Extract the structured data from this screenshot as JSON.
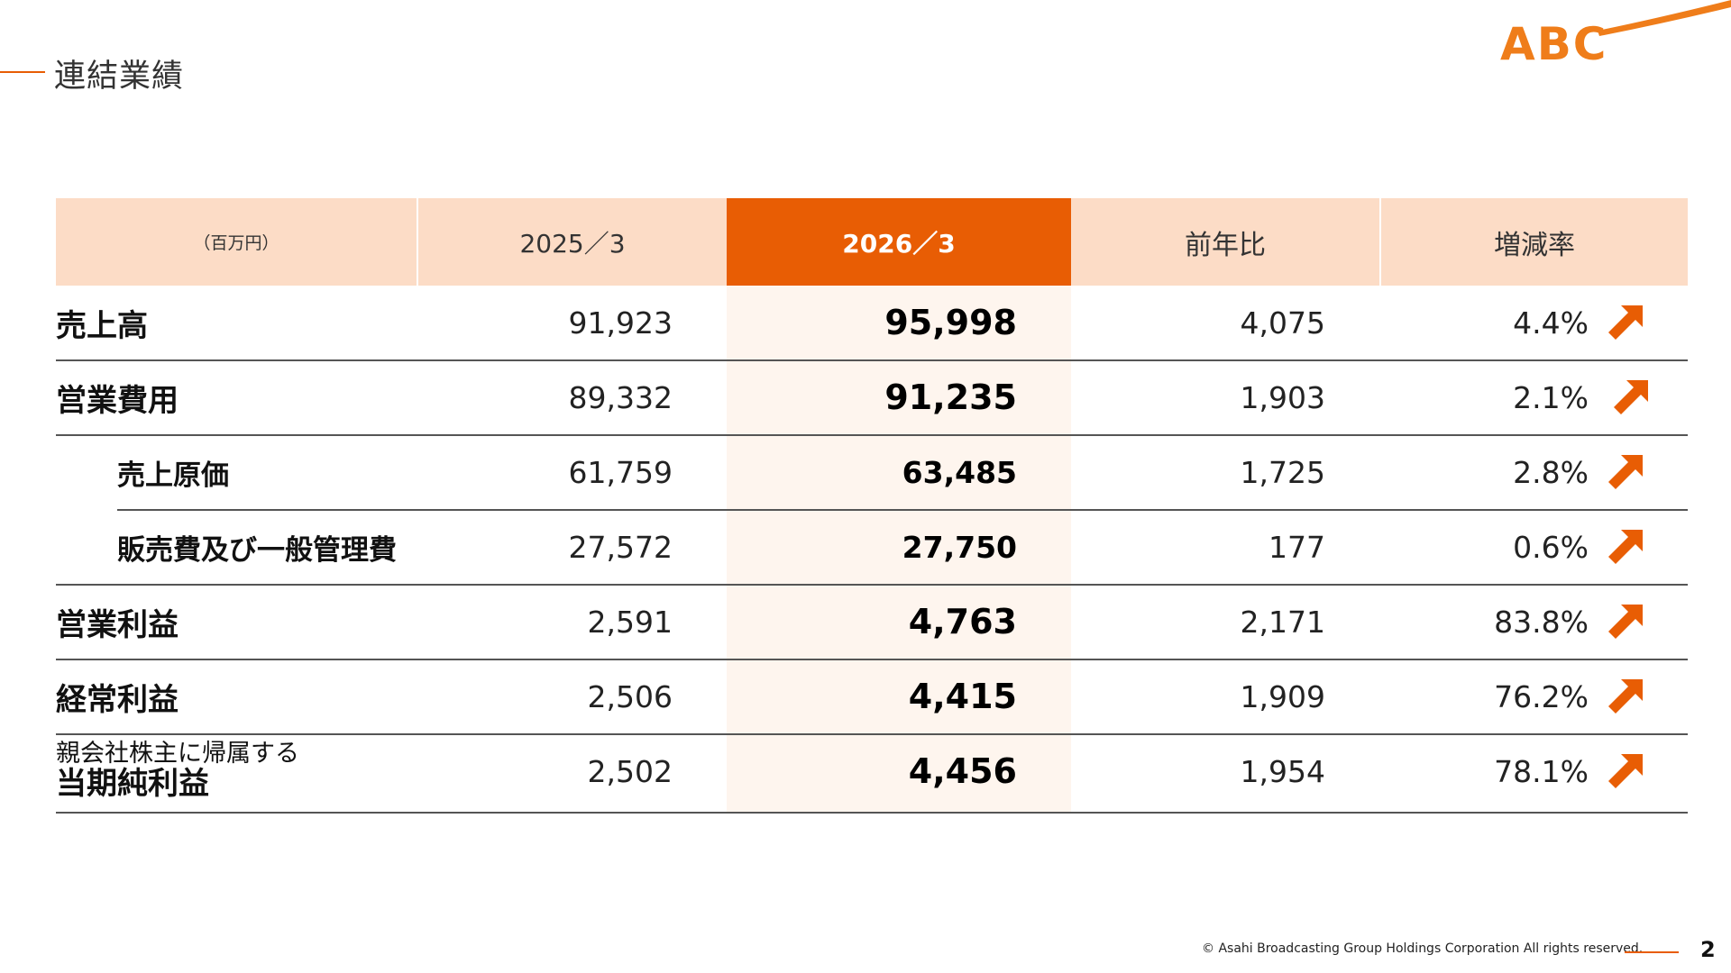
{
  "header": {
    "title": "連結業績"
  },
  "logo": {
    "text": "ABC",
    "color": "#ef7d1a"
  },
  "table": {
    "unit": "（百万円）",
    "columns": [
      "2025／3",
      "2026／3",
      "前年比",
      "増減率"
    ],
    "rows": [
      {
        "label": "売上高",
        "prev": "91,923",
        "curr": "95,998",
        "diff": "4,075",
        "rate": "4.4%"
      },
      {
        "label": "営業費用",
        "prev": "89,332",
        "curr": "91,235",
        "diff": "1,903",
        "rate": "2.1%"
      },
      {
        "label": "売上原価",
        "prev": "61,759",
        "curr": "63,485",
        "diff": "1,725",
        "rate": "2.8%"
      },
      {
        "label": "販売費及び一般管理費",
        "prev": "27,572",
        "curr": "27,750",
        "diff": "177",
        "rate": "0.6%"
      },
      {
        "label": "営業利益",
        "prev": "2,591",
        "curr": "4,763",
        "diff": "2,171",
        "rate": "83.8%"
      },
      {
        "label": "経常利益",
        "prev": "2,506",
        "curr": "4,415",
        "diff": "1,909",
        "rate": "76.2%"
      },
      {
        "label_line1": "親会社株主に帰属する",
        "label_line2": "当期純利益",
        "prev": "2,502",
        "curr": "4,456",
        "diff": "1,954",
        "rate": "78.1%"
      }
    ],
    "arrow_icon": "arrow-up-right-icon",
    "colors": {
      "accent": "#e85d04",
      "header_bg": "#fcdcc6",
      "highlight_bg": "#fef5ee"
    }
  },
  "footer": {
    "copyright": "© Asahi Broadcasting Group Holdings Corporation All rights reserved.",
    "page_number": "2"
  }
}
